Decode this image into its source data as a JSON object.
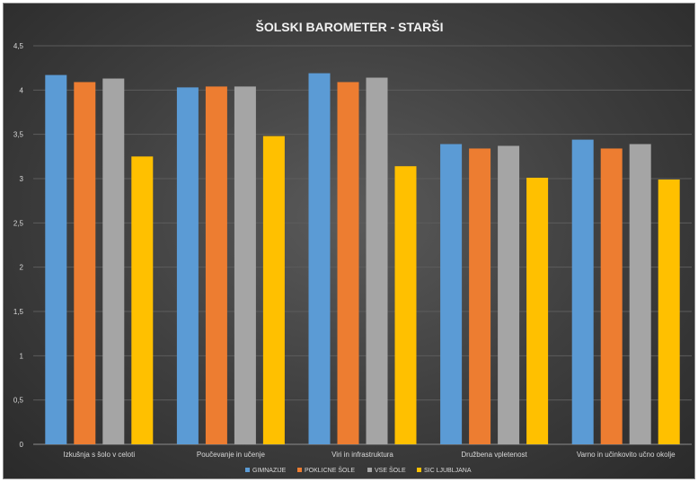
{
  "chart_data": {
    "type": "bar",
    "title": "ŠOLSKI BAROMETER - STARŠI",
    "xlabel": "",
    "ylabel": "",
    "ylim": [
      0,
      4.5
    ],
    "yticks": [
      "0",
      "0,5",
      "1",
      "1,5",
      "2",
      "2,5",
      "3",
      "3,5",
      "4",
      "4,5"
    ],
    "grid": true,
    "legend_position": "bottom",
    "categories": [
      "Izkušnja s šolo v celoti",
      "Poučevanje in učenje",
      "Viri in infrastruktura",
      "Družbena vpletenost",
      "Varno in učinkovito učno okolje"
    ],
    "series": [
      {
        "name": "GIMNAZIJE",
        "color": "#5b9bd5",
        "values": [
          4.17,
          4.03,
          4.19,
          3.39,
          3.44
        ]
      },
      {
        "name": "POKLICNE ŠOLE",
        "color": "#ed7d31",
        "values": [
          4.09,
          4.04,
          4.09,
          3.34,
          3.34
        ]
      },
      {
        "name": "VSE ŠOLE",
        "color": "#a5a5a5",
        "values": [
          4.13,
          4.04,
          4.14,
          3.37,
          3.39
        ]
      },
      {
        "name": "SIC LJUBLJANA",
        "color": "#ffc000",
        "values": [
          3.25,
          3.48,
          3.14,
          3.01,
          2.99
        ]
      }
    ]
  }
}
